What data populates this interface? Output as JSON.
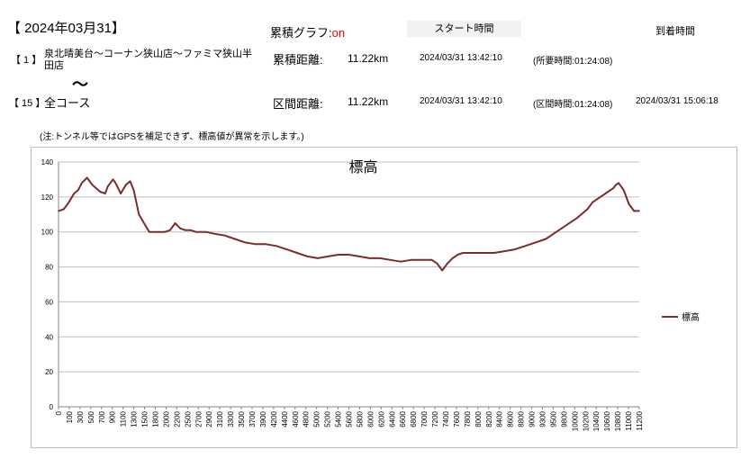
{
  "header": {
    "date": "【 2024年03月31】",
    "cumulative_graph_label": "累積グラフ:",
    "cumulative_graph_state": "on",
    "start_time_label": "スタート時間",
    "arrival_time_label": "到着時間"
  },
  "route1": {
    "number": "【 1 】",
    "name": "泉北晴美台～コーナン狭山店～ファミマ狭山半田店",
    "distance_label": "累積距離:",
    "distance": "11.22km",
    "start": "2024/03/31 13:42:10",
    "required": "(所要時間:01:24:08)"
  },
  "separator": "～",
  "route15": {
    "number": "【 15 】",
    "name": "全コース",
    "distance_label": "区間距離:",
    "distance": "11.22km",
    "start": "2024/03/31 13:42:10",
    "section_time": "(区間時間:01:24:08)",
    "arrival": "2024/03/31 15:06:18"
  },
  "note": "(注:トンネル等ではGPSを補足できず、標高値が異常を示します。)",
  "chart_data": {
    "type": "line",
    "title": "標高",
    "xlabel": "",
    "ylabel": "",
    "ylim": [
      0,
      140
    ],
    "xlim": [
      0,
      11200
    ],
    "yticks": [
      0,
      20,
      40,
      60,
      80,
      100,
      120,
      140
    ],
    "xticks": [
      0,
      100,
      300,
      500,
      700,
      900,
      1100,
      1300,
      1500,
      1800,
      2000,
      2200,
      2500,
      2700,
      2900,
      3100,
      3300,
      3500,
      3700,
      3900,
      4200,
      4400,
      4600,
      4800,
      5000,
      5200,
      5400,
      5600,
      5800,
      6000,
      6200,
      6400,
      6600,
      6800,
      7000,
      7200,
      7400,
      7600,
      7800,
      8000,
      8200,
      8400,
      8600,
      8800,
      9000,
      9300,
      9500,
      9800,
      10000,
      10200,
      10400,
      10600,
      10800,
      11000,
      11200
    ],
    "grid": true,
    "legend": "right",
    "color": "#7b2c2c",
    "series": [
      {
        "name": "標高",
        "x": [
          0,
          100,
          200,
          300,
          380,
          450,
          550,
          650,
          800,
          900,
          950,
          1050,
          1100,
          1200,
          1300,
          1380,
          1450,
          1550,
          1650,
          1750,
          1850,
          1950,
          2050,
          2150,
          2250,
          2350,
          2450,
          2550,
          2650,
          2750,
          2850,
          3000,
          3200,
          3400,
          3600,
          3800,
          4000,
          4200,
          4400,
          4600,
          4800,
          5000,
          5200,
          5400,
          5600,
          5800,
          6000,
          6200,
          6400,
          6600,
          6800,
          7000,
          7200,
          7300,
          7400,
          7500,
          7600,
          7700,
          7800,
          8000,
          8200,
          8400,
          8600,
          8800,
          9000,
          9200,
          9400,
          9600,
          9800,
          10000,
          10200,
          10300,
          10400,
          10500,
          10600,
          10700,
          10750,
          10800,
          10900,
          11000,
          11100,
          11200
        ],
        "values": [
          112,
          113,
          117,
          122,
          124,
          128,
          131,
          127,
          123,
          122,
          126,
          130,
          128,
          122,
          127,
          129,
          124,
          110,
          105,
          100,
          100,
          100,
          100,
          101,
          105,
          102,
          101,
          101,
          100,
          100,
          100,
          99,
          98,
          96,
          94,
          93,
          93,
          92,
          90,
          88,
          86,
          85,
          86,
          87,
          87,
          86,
          85,
          85,
          84,
          83,
          84,
          84,
          84,
          82,
          78,
          82,
          85,
          87,
          88,
          88,
          88,
          88,
          89,
          90,
          92,
          94,
          96,
          100,
          104,
          108,
          113,
          117,
          119,
          121,
          123,
          125,
          127,
          128,
          124,
          116,
          112,
          112
        ]
      }
    ]
  }
}
